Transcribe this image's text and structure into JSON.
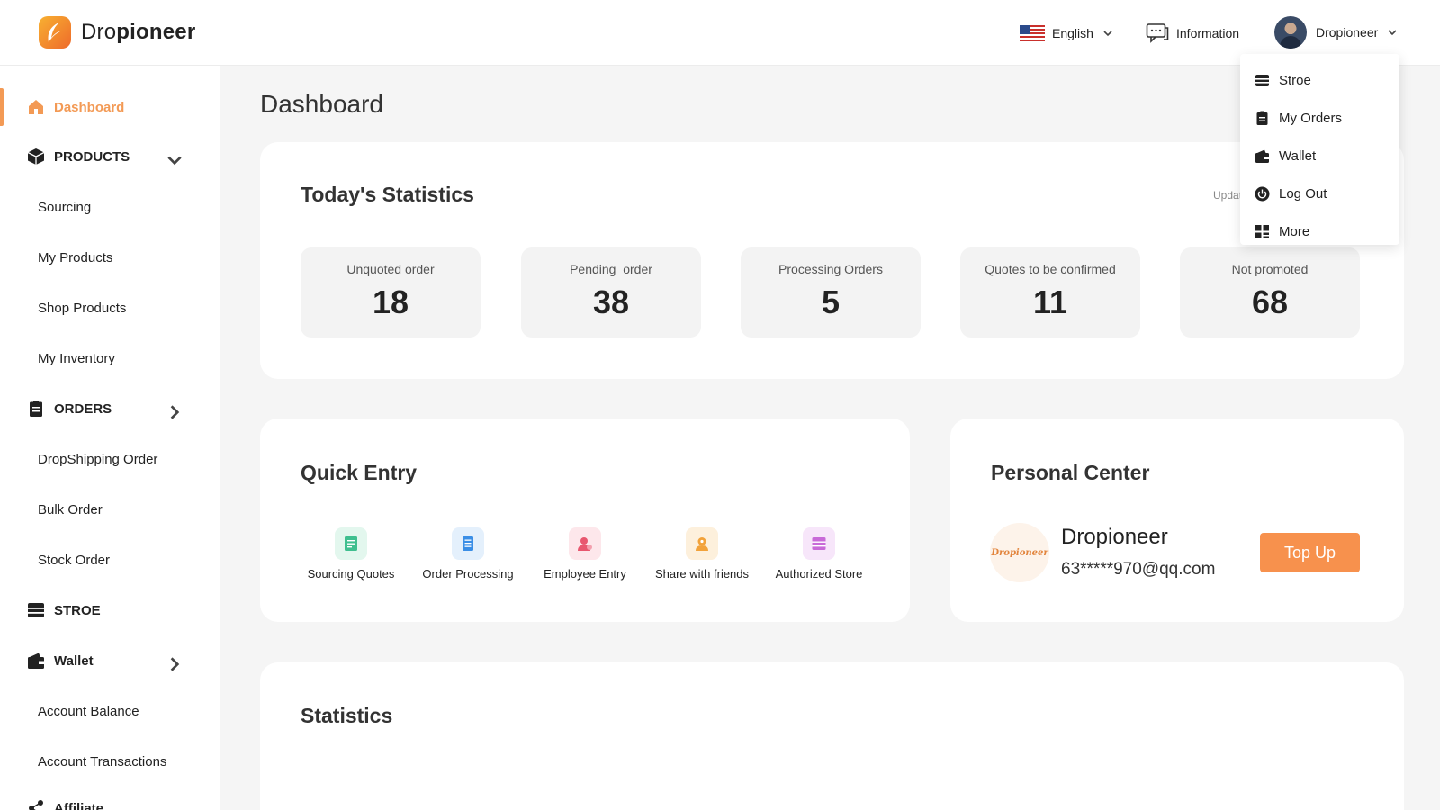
{
  "header": {
    "logo_prefix": "Dro",
    "logo_suffix": "pioneer",
    "language": "English",
    "information": "Information",
    "user_name": "Dropioneer"
  },
  "dropdown": {
    "items": [
      {
        "label": "Stroe",
        "icon": "store-icon"
      },
      {
        "label": "My Orders",
        "icon": "orders-icon"
      },
      {
        "label": "Wallet",
        "icon": "wallet-icon"
      },
      {
        "label": "Log Out",
        "icon": "power-icon"
      },
      {
        "label": "More",
        "icon": "grid-icon"
      }
    ]
  },
  "sidebar": {
    "dashboard": "Dashboard",
    "products": "PRODUCTS",
    "products_items": [
      "Sourcing",
      "My Products",
      "Shop Products",
      "My Inventory"
    ],
    "orders": "ORDERS",
    "orders_items": [
      "DropShipping Order",
      "Bulk Order",
      "Stock Order"
    ],
    "store": "STROE",
    "wallet": "Wallet",
    "wallet_items": [
      "Account Balance",
      "Account Transactions"
    ],
    "affiliate": "Affiliate"
  },
  "main": {
    "title": "Dashboard",
    "today": {
      "title": "Today's Statistics",
      "updated_partial": "Updat",
      "stats": [
        {
          "label": "Unquoted order",
          "value": "18"
        },
        {
          "label": "Pending  order",
          "value": "38"
        },
        {
          "label": "Processing Orders",
          "value": "5"
        },
        {
          "label": "Quotes to be confirmed",
          "value": "11"
        },
        {
          "label": "Not promoted",
          "value": "68"
        }
      ]
    },
    "quick_entry": {
      "title": "Quick Entry",
      "items": [
        {
          "label": "Sourcing Quotes",
          "color": "#3fbf8f",
          "bg": "#e3f7ee"
        },
        {
          "label": "Order Processing",
          "color": "#3a8ee6",
          "bg": "#e4f0fc"
        },
        {
          "label": "Employee Entry",
          "color": "#e8576f",
          "bg": "#fde7eb"
        },
        {
          "label": "Share with friends",
          "color": "#f2a23a",
          "bg": "#fdf0dc"
        },
        {
          "label": "Authorized Store",
          "color": "#c86ad8",
          "bg": "#f7e6fa"
        }
      ]
    },
    "personal_center": {
      "title": "Personal Center",
      "logo_text": "Dropioneer",
      "name": "Dropioneer",
      "email": "63*****970@qq.com",
      "top_up": "Top Up"
    },
    "statistics": {
      "title": "Statistics"
    }
  },
  "colors": {
    "accent": "#f39a55",
    "topup": "#f7914d"
  }
}
